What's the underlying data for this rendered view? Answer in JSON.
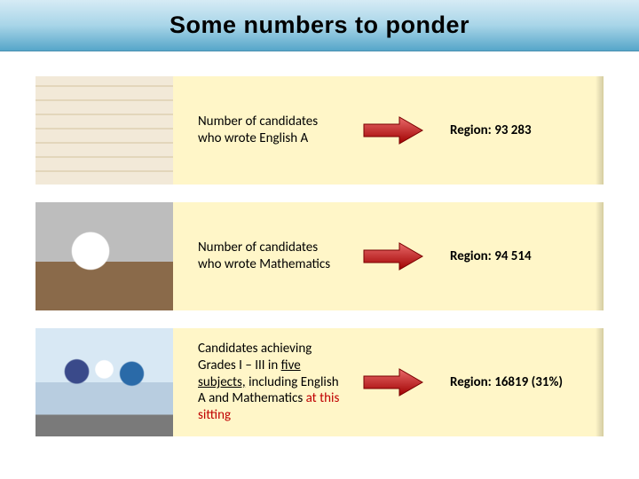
{
  "header": {
    "title": "Some numbers to ponder"
  },
  "rows": [
    {
      "desc": "Number of candidates who wrote English A",
      "result": "Region: 93 283"
    },
    {
      "desc": "Number of candidates who wrote Mathematics",
      "result": "Region: 94 514"
    },
    {
      "desc_html": "Candidates achieving Grades I – III in <span class='underline'>five subjects,</span> including English A and Mathematics <span class='red'>at this sitting</span>",
      "result": "Region: 16819 (31%)"
    }
  ],
  "arrow": {
    "fill": "#c00000",
    "gradient_top": "#e86a6a",
    "gradient_bottom": "#a00000",
    "stroke": "#7a0000"
  }
}
